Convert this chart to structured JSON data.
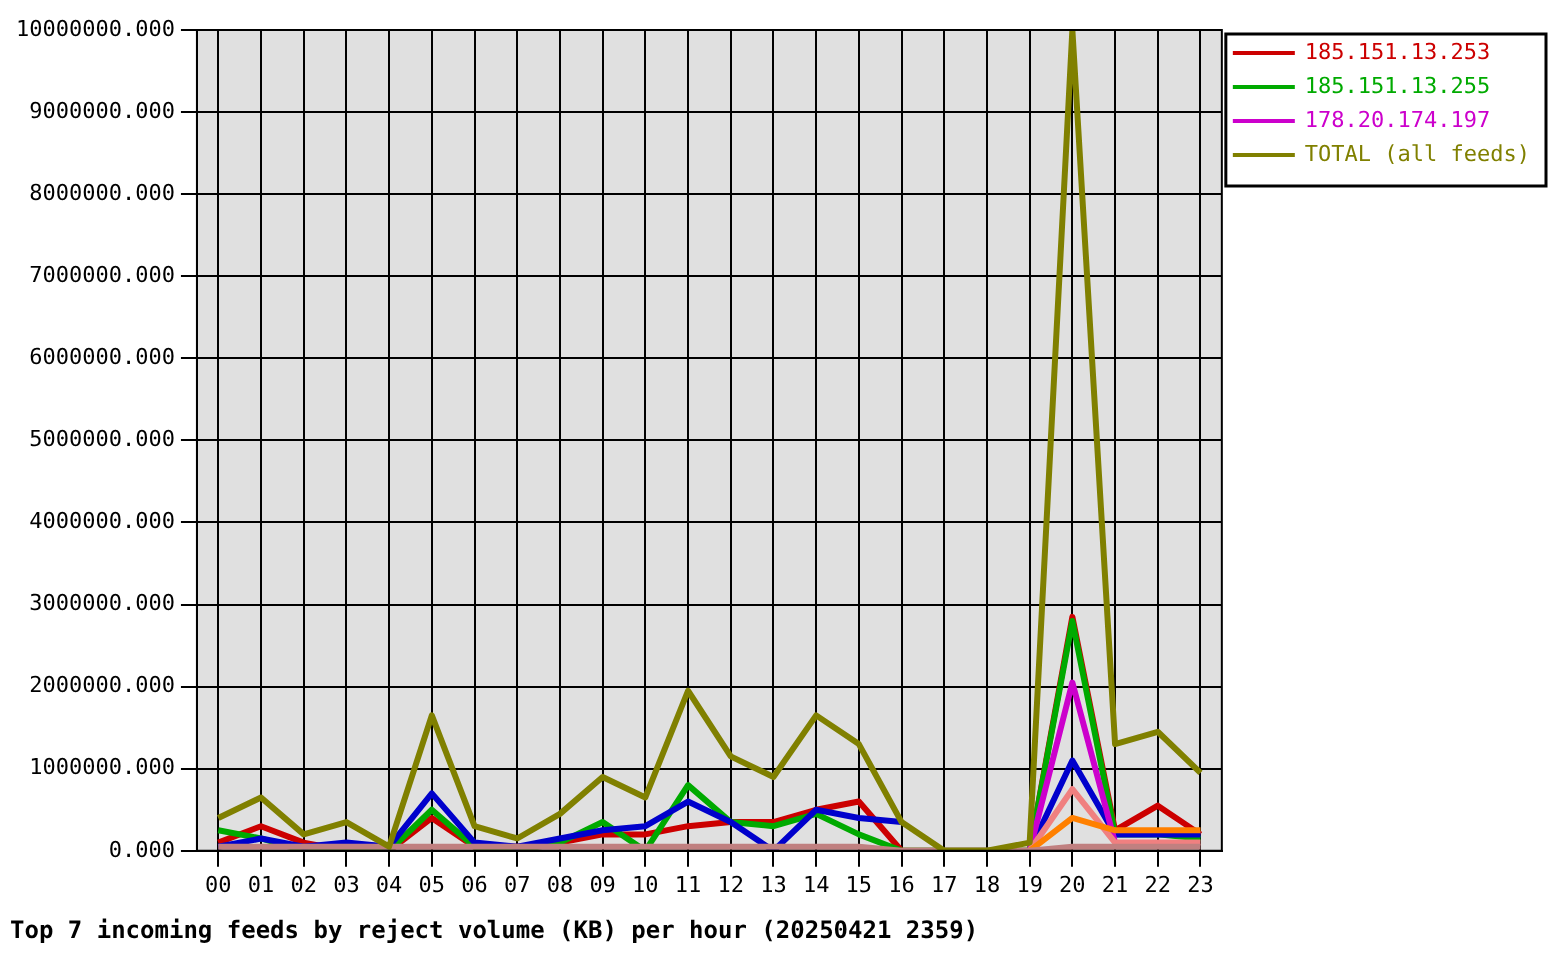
{
  "chart_data": {
    "type": "line",
    "title": "Top 7 incoming feeds by reject volume (KB) per hour (20250421 2359)",
    "categories": [
      "00",
      "01",
      "02",
      "03",
      "04",
      "05",
      "06",
      "07",
      "08",
      "09",
      "10",
      "11",
      "12",
      "13",
      "14",
      "15",
      "16",
      "17",
      "18",
      "19",
      "20",
      "21",
      "22",
      "23"
    ],
    "series": [
      {
        "name": "185.151.13.253",
        "color": "#cc0000",
        "values": [
          100000,
          300000,
          100000,
          0,
          0,
          400000,
          50000,
          50000,
          100000,
          200000,
          200000,
          300000,
          350000,
          350000,
          500000,
          600000,
          0,
          0,
          0,
          0,
          2850000,
          250000,
          550000,
          200000
        ]
      },
      {
        "name": "185.151.13.255",
        "color": "#00aa00",
        "values": [
          250000,
          150000,
          0,
          0,
          0,
          500000,
          50000,
          0,
          100000,
          350000,
          0,
          800000,
          350000,
          300000,
          450000,
          200000,
          0,
          0,
          0,
          0,
          2800000,
          200000,
          200000,
          150000
        ]
      },
      {
        "color": "#0000cc",
        "values": [
          50000,
          150000,
          50000,
          100000,
          50000,
          700000,
          100000,
          50000,
          150000,
          250000,
          300000,
          600000,
          350000,
          0,
          500000,
          400000,
          350000,
          null,
          null,
          0,
          1100000,
          200000,
          200000,
          200000
        ]
      },
      {
        "name": "178.20.174.197",
        "color": "#cc00cc",
        "values": [
          null,
          null,
          null,
          null,
          null,
          null,
          null,
          null,
          null,
          null,
          null,
          null,
          null,
          null,
          null,
          null,
          null,
          null,
          null,
          0,
          2050000,
          100000,
          null,
          null
        ]
      },
      {
        "color": "#f08080",
        "values": [
          null,
          null,
          null,
          null,
          null,
          null,
          null,
          null,
          null,
          null,
          null,
          null,
          null,
          null,
          null,
          null,
          null,
          null,
          null,
          0,
          750000,
          100000,
          100000,
          100000
        ]
      },
      {
        "color": "#ff8000",
        "values": [
          null,
          null,
          null,
          null,
          null,
          null,
          null,
          null,
          null,
          null,
          null,
          null,
          null,
          null,
          null,
          null,
          null,
          null,
          null,
          0,
          400000,
          250000,
          250000,
          250000
        ]
      },
      {
        "color": "#c08080",
        "values": [
          50000,
          50000,
          50000,
          50000,
          50000,
          50000,
          50000,
          50000,
          50000,
          50000,
          50000,
          50000,
          50000,
          50000,
          50000,
          50000,
          0,
          0,
          0,
          0,
          50000,
          50000,
          50000,
          50000
        ]
      },
      {
        "name": "TOTAL (all feeds)",
        "color": "#808000",
        "values": [
          400000,
          650000,
          200000,
          350000,
          50000,
          1650000,
          300000,
          150000,
          450000,
          900000,
          650000,
          1950000,
          1150000,
          900000,
          1650000,
          1300000,
          350000,
          0,
          0,
          100000,
          10000000,
          1300000,
          1450000,
          950000
        ]
      }
    ],
    "ylim": [
      0,
      10000000
    ],
    "yticks": [
      {
        "value": 0,
        "label": "0.000"
      },
      {
        "value": 1000000,
        "label": "1000000.000"
      },
      {
        "value": 2000000,
        "label": "2000000.000"
      },
      {
        "value": 3000000,
        "label": "3000000.000"
      },
      {
        "value": 4000000,
        "label": "4000000.000"
      },
      {
        "value": 5000000,
        "label": "5000000.000"
      },
      {
        "value": 6000000,
        "label": "6000000.000"
      },
      {
        "value": 7000000,
        "label": "7000000.000"
      },
      {
        "value": 8000000,
        "label": "8000000.000"
      },
      {
        "value": 9000000,
        "label": "9000000.000"
      },
      {
        "value": 10000000,
        "label": "10000000.000"
      }
    ],
    "grid": true,
    "legend": "right",
    "marker": "none",
    "line_style": "solid"
  }
}
